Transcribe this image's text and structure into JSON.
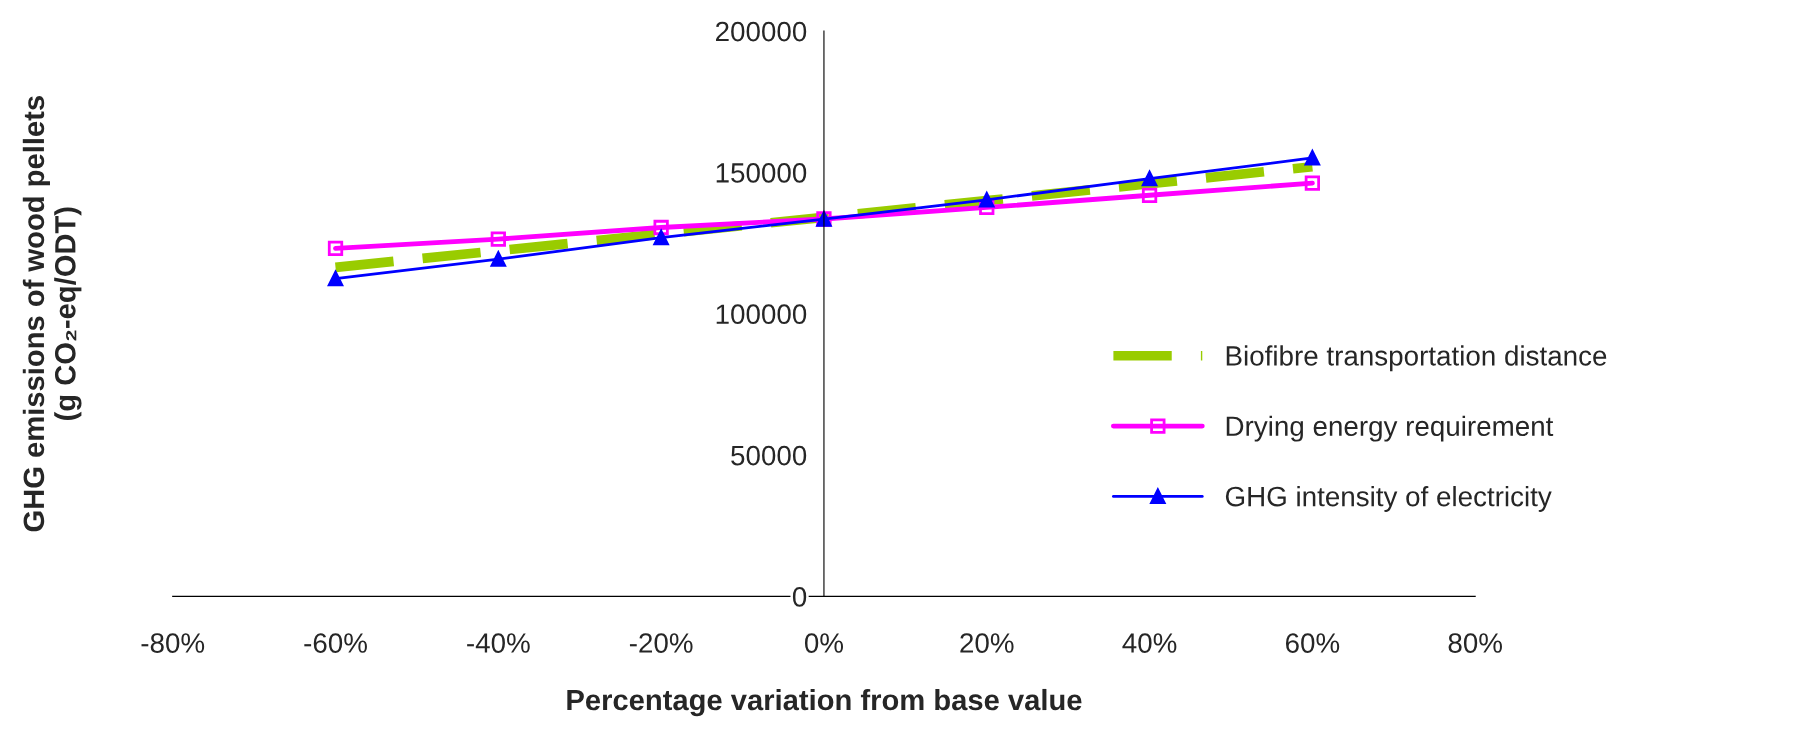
{
  "chart_data": {
    "type": "line",
    "xlabel": "Percentage variation from base value",
    "ylabel": "GHG emissions of wood pellets\n(g CO₂-eq/ODT)",
    "x": [
      -60,
      -40,
      -20,
      0,
      20,
      40,
      60
    ],
    "series": [
      {
        "name": "Biofibre transportation distance",
        "color": "#99cc00",
        "values": [
          116400,
          122300,
          128200,
          134100,
          140000,
          146000,
          152000
        ],
        "marker": "none",
        "line_style": "dashed"
      },
      {
        "name": "Drying energy requirement",
        "color": "#ff00ff",
        "values": [
          123100,
          126400,
          130500,
          133500,
          137600,
          141900,
          146200
        ],
        "marker": "square",
        "line_style": "solid"
      },
      {
        "name": "GHG intensity of electricity",
        "color": "#0000ff",
        "values": [
          112400,
          119300,
          126900,
          133500,
          140300,
          147800,
          155100
        ],
        "marker": "triangle",
        "line_style": "solid"
      }
    ],
    "xlim": [
      -80,
      80
    ],
    "xticks": [
      {
        "value": -80,
        "label": "-80%"
      },
      {
        "value": -60,
        "label": "-60%"
      },
      {
        "value": -40,
        "label": "-40%"
      },
      {
        "value": -20,
        "label": "-20%"
      },
      {
        "value": 0,
        "label": "0%"
      },
      {
        "value": 20,
        "label": "20%"
      },
      {
        "value": 40,
        "label": "40%"
      },
      {
        "value": 60,
        "label": "60%"
      },
      {
        "value": 80,
        "label": "80%"
      }
    ],
    "ylim": [
      0,
      200000
    ],
    "yticks": [
      0,
      50000,
      100000,
      150000,
      200000
    ],
    "grid": false,
    "legend": "right"
  }
}
